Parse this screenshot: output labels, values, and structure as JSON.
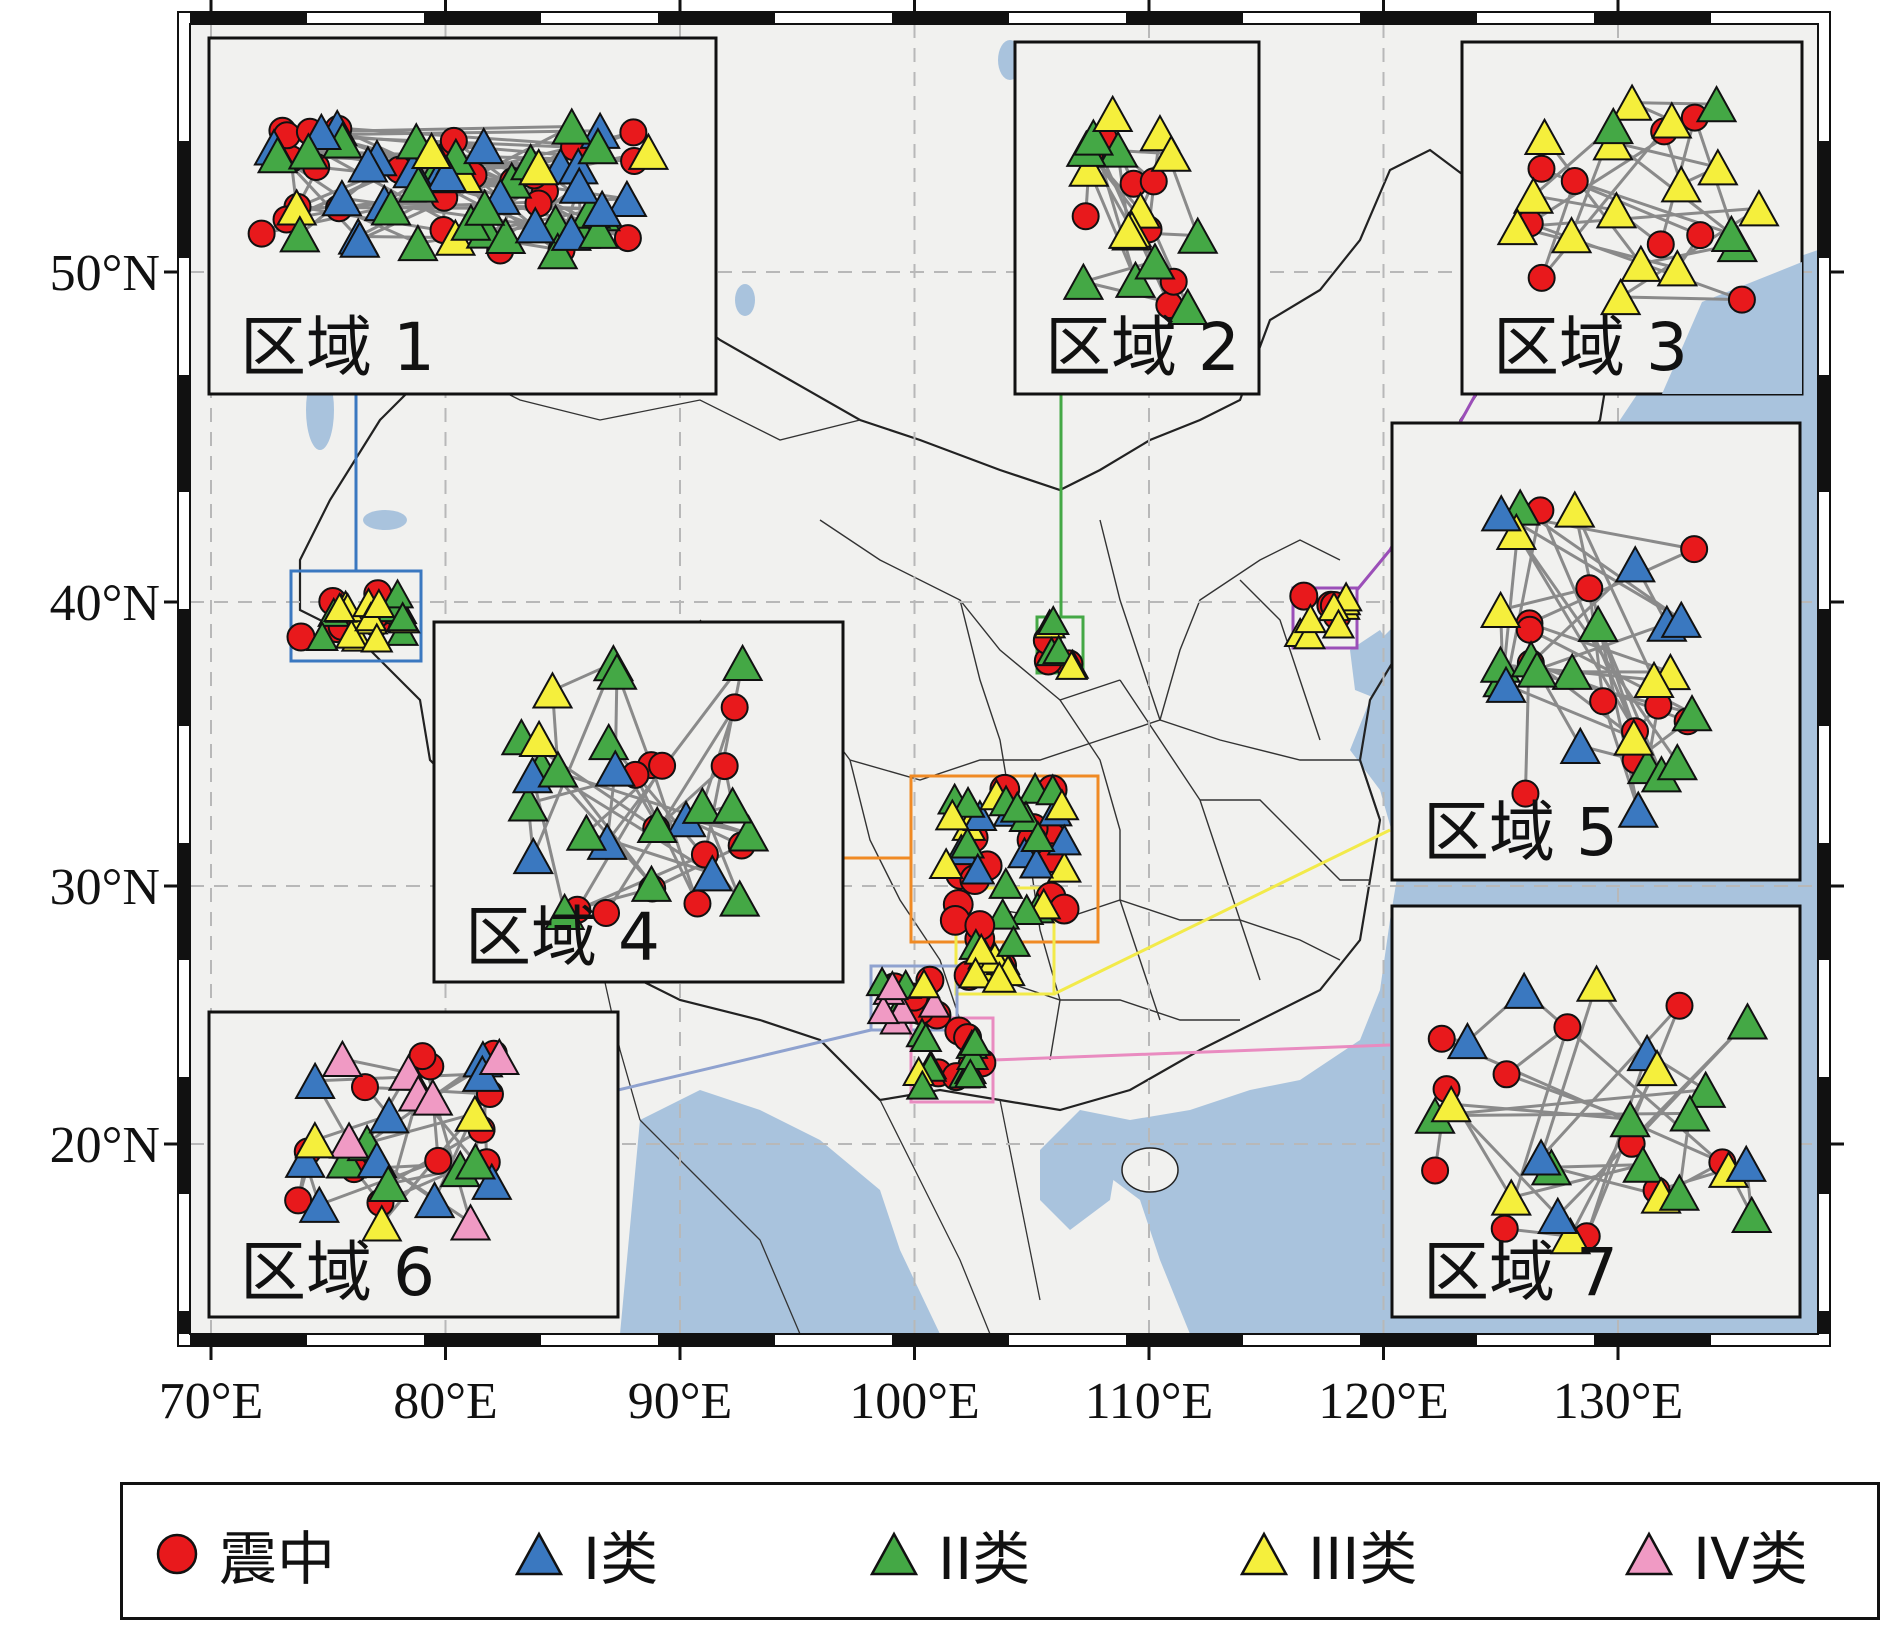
{
  "map": {
    "lon_ticks": [
      "70°E",
      "80°E",
      "90°E",
      "100°E",
      "110°E",
      "120°E",
      "130°E"
    ],
    "lat_ticks": [
      "50°N",
      "40°N",
      "30°N",
      "20°N"
    ],
    "lon_range": [
      69,
      138
    ],
    "lat_range": [
      14,
      57
    ],
    "colors": {
      "land": "#f1f1ef",
      "water": "#a9c3dd",
      "epicenter": "#e8191c",
      "class_i": "#3a78c0",
      "class_ii": "#44a845",
      "class_iii": "#f5ef3c",
      "class_iv": "#f09ac4"
    }
  },
  "insets": [
    {
      "id": 1,
      "label": "区域 1",
      "color": "#3a78c0"
    },
    {
      "id": 2,
      "label": "区域 2",
      "color": "#44a845"
    },
    {
      "id": 3,
      "label": "区域 3",
      "color": "#9b4fb8"
    },
    {
      "id": 4,
      "label": "区域 4",
      "color": "#f08a24"
    },
    {
      "id": 5,
      "label": "区域 5",
      "color": "#f2ea4a"
    },
    {
      "id": 6,
      "label": "区域 6",
      "color": "#8fa2cf"
    },
    {
      "id": 7,
      "label": "区域 7",
      "color": "#e98bc0"
    }
  ],
  "legend": {
    "epicenter": "震中",
    "class_i": "I类",
    "class_ii": "II类",
    "class_iii": "III类",
    "class_iv": "IV类"
  }
}
